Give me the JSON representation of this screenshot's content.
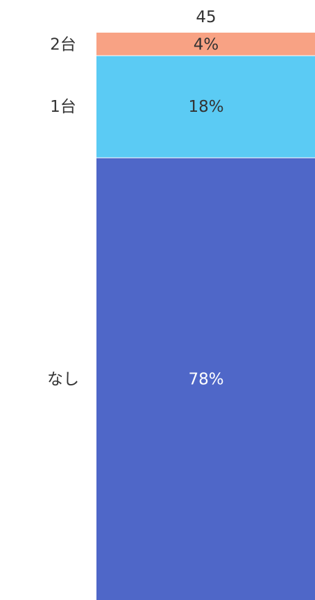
{
  "chart_data": {
    "type": "bar",
    "stacked": true,
    "normalized_percent": true,
    "total": "45",
    "segments": [
      {
        "name": "なし",
        "value": 78,
        "label": "78%",
        "color": "#4f67c8",
        "label_color": "#ffffff"
      },
      {
        "name": "1台",
        "value": 18,
        "label": "18%",
        "color": "#5bcbf4",
        "label_color": "#333333"
      },
      {
        "name": "2台",
        "value": 4,
        "label": "4%",
        "color": "#f8a284",
        "label_color": "#333333"
      }
    ],
    "legend": "none",
    "grid": false
  }
}
